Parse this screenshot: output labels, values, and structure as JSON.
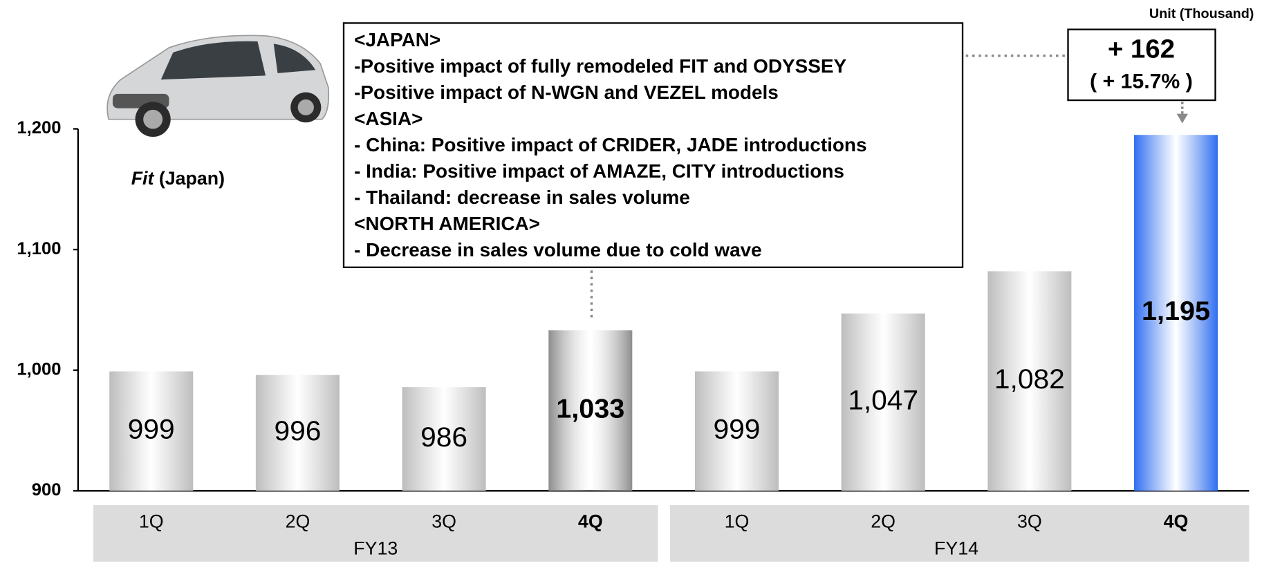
{
  "chart_data": {
    "type": "bar",
    "unit": "Unit (Thousand)",
    "categories": [
      "1Q",
      "2Q",
      "3Q",
      "4Q",
      "1Q",
      "2Q",
      "3Q",
      "4Q"
    ],
    "groups": [
      "FY13",
      "FY14"
    ],
    "values": [
      999,
      996,
      986,
      1033,
      999,
      1047,
      1082,
      1195
    ],
    "value_labels": [
      "999",
      "996",
      "986",
      "1,033",
      "999",
      "1,047",
      "1,082",
      "1,195"
    ],
    "colors": [
      "#bdbdbd",
      "#bdbdbd",
      "#bdbdbd",
      "#8c8c8c",
      "#bdbdbd",
      "#bdbdbd",
      "#bdbdbd",
      "#2f6ef0"
    ],
    "bold": [
      false,
      false,
      false,
      true,
      false,
      false,
      false,
      true
    ],
    "ylim": [
      900,
      1200
    ],
    "yticks": [
      900,
      {
        "value": 1000,
        "label": "1,000"
      },
      {
        "value": 1100,
        "label": "1,100"
      },
      {
        "value": 1200,
        "label": "1,200"
      }
    ],
    "callout": [
      "<JAPAN>",
      "-Positive impact of fully remodeled FIT and ODYSSEY",
      "-Positive impact of N-WGN and VEZEL models",
      "<ASIA>",
      "- China: Positive impact of CRIDER, JADE introductions",
      "- India: Positive impact of AMAZE, CITY introductions",
      "- Thailand: decrease in sales volume",
      "<NORTH AMERICA>",
      "- Decrease in sales volume due to cold wave"
    ],
    "change": "+ 162",
    "change_pct": "( + 15.7% )",
    "image_caption_model": "Fit",
    "image_caption_region": "(Japan)"
  }
}
